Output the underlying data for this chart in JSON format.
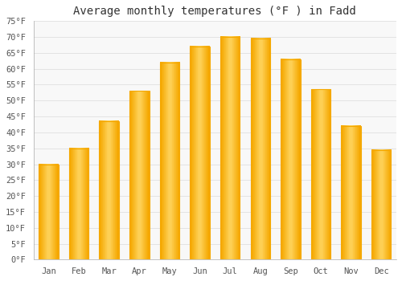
{
  "title": "Average monthly temperatures (°F ) in Fadd",
  "months": [
    "Jan",
    "Feb",
    "Mar",
    "Apr",
    "May",
    "Jun",
    "Jul",
    "Aug",
    "Sep",
    "Oct",
    "Nov",
    "Dec"
  ],
  "values": [
    30,
    35,
    43.5,
    53,
    62,
    67,
    70,
    69.5,
    63,
    53.5,
    42,
    34.5
  ],
  "bar_color_center": "#FFD060",
  "bar_color_edge": "#F5A800",
  "bar_color_top": "#FFC030",
  "background_color": "#FFFFFF",
  "plot_bg_color": "#F8F8F8",
  "ylim": [
    0,
    75
  ],
  "yticks": [
    0,
    5,
    10,
    15,
    20,
    25,
    30,
    35,
    40,
    45,
    50,
    55,
    60,
    65,
    70,
    75
  ],
  "grid_color": "#E0E0E0",
  "title_fontsize": 10,
  "tick_fontsize": 7.5,
  "font_family": "monospace"
}
